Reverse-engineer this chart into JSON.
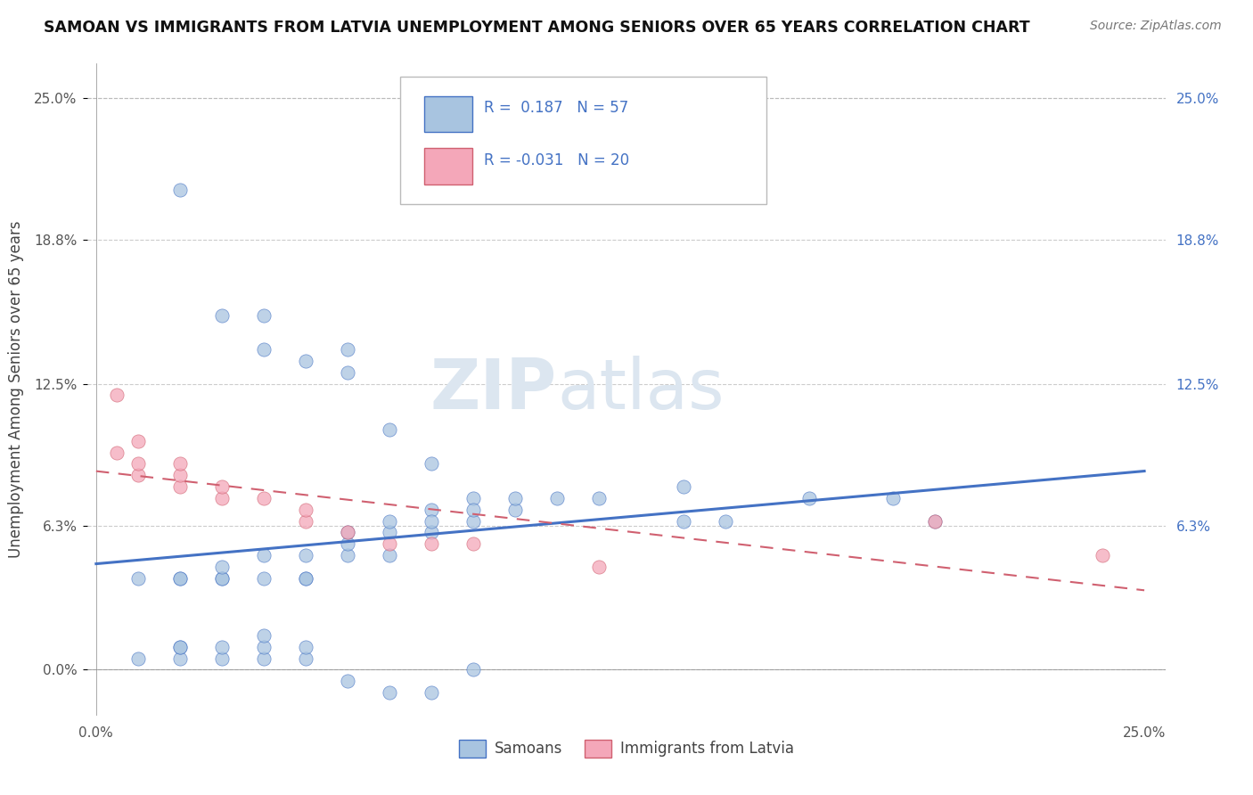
{
  "title": "SAMOAN VS IMMIGRANTS FROM LATVIA UNEMPLOYMENT AMONG SENIORS OVER 65 YEARS CORRELATION CHART",
  "source": "Source: ZipAtlas.com",
  "ylabel": "Unemployment Among Seniors over 65 years",
  "y_ticks": [
    0.0,
    0.063,
    0.125,
    0.188,
    0.25
  ],
  "y_tick_labels_left": [
    "0.0%",
    "6.3%",
    "12.5%",
    "18.8%",
    "25.0%"
  ],
  "y_tick_labels_right": [
    "",
    "6.3%",
    "12.5%",
    "18.8%",
    "25.0%"
  ],
  "x_range": [
    -0.002,
    0.255
  ],
  "y_range": [
    -0.02,
    0.265
  ],
  "legend_r1": "R =  0.187",
  "legend_n1": "N = 57",
  "legend_r2": "R = -0.031",
  "legend_n2": "N = 20",
  "color_samoan": "#a8c4e0",
  "color_latvia": "#f4a7b9",
  "color_line_samoan": "#4472c4",
  "color_line_latvia": "#d06070",
  "background_color": "#ffffff",
  "watermark_zip": "ZIP",
  "watermark_atlas": "atlas",
  "watermark_color": "#dce6f0",
  "samoan_x": [
    0.02,
    0.03,
    0.04,
    0.04,
    0.05,
    0.06,
    0.06,
    0.07,
    0.08,
    0.09,
    0.01,
    0.02,
    0.02,
    0.03,
    0.03,
    0.03,
    0.04,
    0.04,
    0.05,
    0.05,
    0.05,
    0.06,
    0.06,
    0.06,
    0.07,
    0.07,
    0.07,
    0.08,
    0.08,
    0.08,
    0.09,
    0.09,
    0.1,
    0.1,
    0.11,
    0.12,
    0.14,
    0.14,
    0.15,
    0.17,
    0.19,
    0.2,
    0.01,
    0.02,
    0.02,
    0.02,
    0.03,
    0.03,
    0.04,
    0.04,
    0.04,
    0.05,
    0.05,
    0.06,
    0.07,
    0.08,
    0.09
  ],
  "samoan_y": [
    0.21,
    0.155,
    0.14,
    0.155,
    0.135,
    0.13,
    0.14,
    0.105,
    0.09,
    0.075,
    0.04,
    0.04,
    0.04,
    0.04,
    0.04,
    0.045,
    0.04,
    0.05,
    0.04,
    0.04,
    0.05,
    0.05,
    0.055,
    0.06,
    0.05,
    0.06,
    0.065,
    0.06,
    0.07,
    0.065,
    0.065,
    0.07,
    0.07,
    0.075,
    0.075,
    0.075,
    0.065,
    0.08,
    0.065,
    0.075,
    0.075,
    0.065,
    0.005,
    0.005,
    0.01,
    0.01,
    0.005,
    0.01,
    0.005,
    0.01,
    0.015,
    0.005,
    0.01,
    -0.005,
    -0.01,
    -0.01,
    0.0
  ],
  "latvia_x": [
    0.005,
    0.005,
    0.01,
    0.01,
    0.01,
    0.02,
    0.02,
    0.02,
    0.03,
    0.03,
    0.04,
    0.05,
    0.05,
    0.06,
    0.07,
    0.08,
    0.09,
    0.12,
    0.2,
    0.24
  ],
  "latvia_y": [
    0.095,
    0.12,
    0.085,
    0.09,
    0.1,
    0.08,
    0.085,
    0.09,
    0.075,
    0.08,
    0.075,
    0.065,
    0.07,
    0.06,
    0.055,
    0.055,
    0.055,
    0.045,
    0.065,
    0.05
  ]
}
